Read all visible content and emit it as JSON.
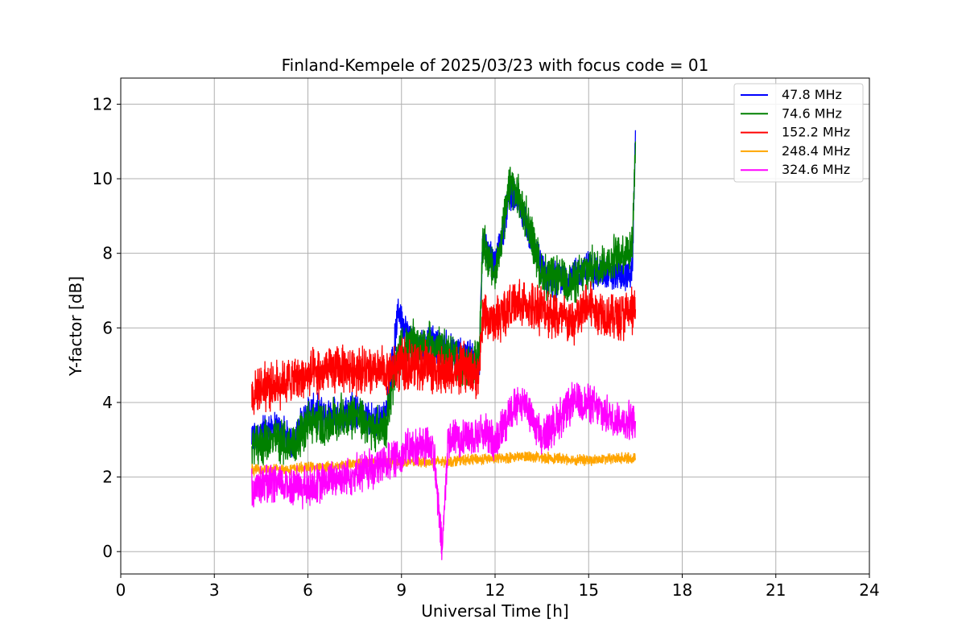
{
  "chart_data": {
    "type": "line",
    "title": "Finland-Kempele of 2025/03/23 with focus code = 01",
    "xlabel": "Universal Time [h]",
    "ylabel": "Y-factor [dB]",
    "xlim": [
      0,
      24
    ],
    "ylim": [
      -0.6,
      12.7
    ],
    "xticks": [
      "0",
      "3",
      "6",
      "9",
      "12",
      "15",
      "18",
      "21",
      "24"
    ],
    "yticks": [
      "0",
      "2",
      "4",
      "6",
      "8",
      "10",
      "12"
    ],
    "grid": true,
    "legend_position": "top-right",
    "series": [
      {
        "name": " 47.8 MHz",
        "color": "#0000ff",
        "x": [
          4.2,
          4.5,
          5.0,
          5.5,
          6.0,
          6.5,
          7.0,
          7.5,
          8.0,
          8.5,
          8.9,
          9.1,
          9.5,
          10.0,
          10.5,
          11.0,
          11.5,
          11.6,
          12.0,
          12.5,
          13.0,
          13.5,
          14.0,
          14.5,
          15.0,
          15.5,
          16.0,
          16.4,
          16.5
        ],
        "y": [
          3.0,
          3.2,
          3.3,
          2.9,
          3.8,
          3.7,
          3.7,
          3.8,
          3.5,
          3.6,
          6.5,
          6.0,
          5.5,
          5.6,
          5.4,
          5.3,
          5.2,
          8.3,
          7.6,
          9.7,
          8.8,
          7.5,
          7.3,
          7.4,
          7.6,
          7.4,
          7.4,
          7.5,
          11.3
        ],
        "noise": 0.4
      },
      {
        "name": " 74.6 MHz",
        "color": "#008000",
        "x": [
          4.2,
          4.5,
          5.0,
          5.5,
          6.0,
          6.5,
          7.0,
          7.5,
          8.0,
          8.5,
          8.9,
          9.1,
          9.5,
          10.0,
          10.5,
          11.0,
          11.5,
          11.6,
          12.0,
          12.5,
          13.0,
          13.5,
          14.0,
          14.5,
          15.0,
          15.5,
          16.0,
          16.4,
          16.5
        ],
        "y": [
          2.8,
          2.9,
          3.0,
          2.8,
          3.5,
          3.4,
          3.6,
          3.7,
          3.3,
          3.4,
          5.2,
          5.5,
          5.6,
          5.5,
          5.3,
          5.1,
          5.1,
          8.3,
          7.4,
          9.9,
          9.0,
          7.4,
          7.3,
          7.2,
          7.6,
          7.7,
          8.0,
          8.2,
          11.0
        ],
        "noise": 0.5
      },
      {
        "name": "152.2 MHz",
        "color": "#ff0000",
        "x": [
          4.2,
          4.5,
          5.0,
          5.5,
          6.0,
          6.5,
          7.0,
          7.5,
          8.0,
          8.5,
          9.0,
          9.5,
          10.0,
          10.5,
          11.0,
          11.5,
          11.6,
          12.0,
          12.5,
          13.0,
          13.5,
          14.0,
          14.5,
          15.0,
          15.5,
          16.0,
          16.5
        ],
        "y": [
          4.2,
          4.4,
          4.5,
          4.6,
          4.7,
          4.8,
          4.9,
          4.9,
          4.8,
          4.8,
          5.0,
          5.0,
          4.9,
          4.8,
          4.9,
          4.8,
          6.3,
          6.2,
          6.6,
          6.6,
          6.5,
          6.3,
          6.1,
          6.6,
          6.4,
          6.3,
          6.5
        ],
        "noise": 0.55
      },
      {
        "name": "248.4 MHz",
        "color": "#ffa500",
        "x": [
          4.2,
          5.0,
          6.0,
          7.0,
          8.0,
          9.0,
          10.0,
          11.0,
          12.0,
          13.0,
          14.0,
          15.0,
          16.0,
          16.5
        ],
        "y": [
          2.2,
          2.2,
          2.25,
          2.3,
          2.4,
          2.4,
          2.4,
          2.45,
          2.5,
          2.55,
          2.5,
          2.45,
          2.5,
          2.5
        ],
        "noise": 0.12
      },
      {
        "name": "324.6 MHz",
        "color": "#ff00ff",
        "x": [
          4.2,
          5.0,
          6.0,
          7.0,
          8.0,
          9.0,
          9.5,
          10.0,
          10.3,
          10.5,
          11.0,
          11.5,
          12.0,
          12.5,
          13.0,
          13.5,
          14.0,
          14.5,
          15.0,
          15.5,
          16.0,
          16.5
        ],
        "y": [
          1.7,
          1.8,
          1.7,
          2.0,
          2.2,
          2.6,
          2.8,
          2.9,
          0.0,
          3.0,
          3.1,
          3.2,
          3.0,
          3.8,
          4.0,
          3.0,
          3.5,
          4.0,
          4.0,
          3.7,
          3.5,
          3.5
        ],
        "noise": 0.45
      }
    ]
  }
}
